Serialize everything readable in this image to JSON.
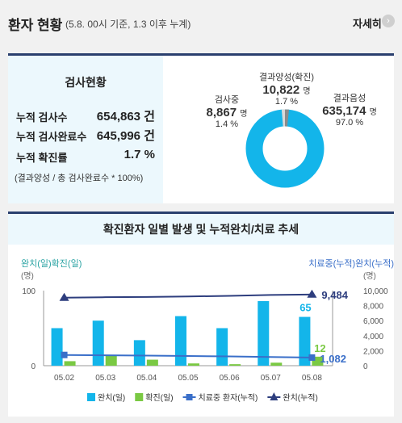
{
  "header": {
    "title": "환자 현황",
    "subtitle": "(5.8. 00시 기준, 1.3 이후 누계)",
    "more_label": "자세히",
    "more_icon": "chevron-right-icon"
  },
  "test_status": {
    "title": "검사현황",
    "rows": [
      {
        "label": "누적 검사수",
        "value": "654,863 건"
      },
      {
        "label": "누적 검사완료수",
        "value": "645,996 건"
      },
      {
        "label": "누적 확진률",
        "value": "1.7 %"
      }
    ],
    "note": "(결과양성 / 총 검사완료수 * 100%)"
  },
  "donut": {
    "positive": {
      "name": "결과양성(확진)",
      "count": "10,822",
      "unit": "명",
      "pct": "1.7 %",
      "value": 10822,
      "color": "#8c8c8c"
    },
    "testing": {
      "name": "검사중",
      "count": "8,867",
      "unit": "명",
      "pct": "1.4 %",
      "value": 8867,
      "color": "#d9d9d9"
    },
    "negative": {
      "name": "결과음성",
      "count": "635,174",
      "unit": "명",
      "pct": "97.0 %",
      "value": 635174,
      "color": "#13b5ea"
    }
  },
  "chart_data": {
    "type": "bar",
    "title": "확진환자 일별 발생 및 누적완치/치료 추세",
    "left_axis_label": "완치(일)확진(일)",
    "left_axis_unit": "(명)",
    "right_axis_label": "치료중(누적)완치(누적)",
    "right_axis_unit": "(명)",
    "categories": [
      "05.02",
      "05.03",
      "05.04",
      "05.05",
      "05.06",
      "05.07",
      "05.08"
    ],
    "left_ylim": [
      0,
      100
    ],
    "left_ticks": [
      "0",
      "100"
    ],
    "right_ylim": [
      0,
      10000
    ],
    "right_ticks": [
      "0",
      "2,000",
      "4,000",
      "6,000",
      "8,000",
      "10,000"
    ],
    "series": [
      {
        "name": "완치(일)",
        "kind": "bar",
        "axis": "left",
        "color": "#13b5ea",
        "values": [
          50,
          60,
          34,
          66,
          50,
          86,
          65
        ]
      },
      {
        "name": "확진(일)",
        "kind": "bar",
        "axis": "left",
        "color": "#7ac943",
        "values": [
          6,
          13,
          8,
          3,
          2,
          4,
          12
        ]
      },
      {
        "name": "치료중 환자(누적)",
        "kind": "line",
        "axis": "right",
        "color": "#3a6fc9",
        "marker": "square",
        "values": [
          1430,
          1380,
          1350,
          1290,
          1230,
          1160,
          1082
        ]
      },
      {
        "name": "완치(누적)",
        "kind": "line",
        "axis": "right",
        "color": "#2e3e7e",
        "marker": "triangle",
        "values": [
          9060,
          9120,
          9150,
          9220,
          9300,
          9420,
          9484
        ]
      }
    ],
    "annotations": [
      {
        "label": "65",
        "color": "#13b5ea"
      },
      {
        "label": "12",
        "color": "#7ac943"
      },
      {
        "label": "9,484",
        "color": "#2e3e7e"
      },
      {
        "label": "1,082",
        "color": "#3a6fc9"
      }
    ]
  }
}
